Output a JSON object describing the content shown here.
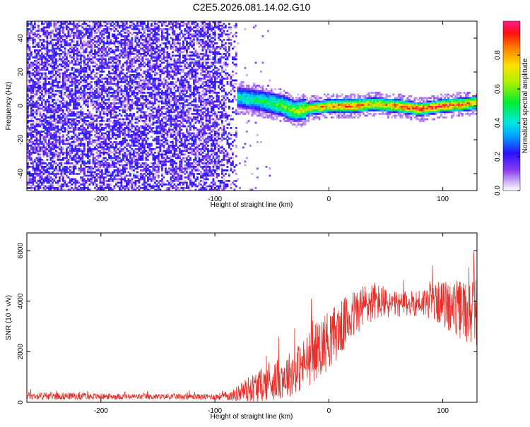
{
  "title": "C2E5.2026.081.14.02.G10",
  "colors": {
    "signal": "#e8302a",
    "heat_low": "#c9a6f5",
    "heat_mid": "#6a10f0",
    "axis": "#000000",
    "background": "#ffffff"
  },
  "chart_data": [
    {
      "type": "heatmap",
      "title": "",
      "xlabel": "Height of straight line (km)",
      "ylabel": "Frequency (Hz)",
      "xlim": [
        -265,
        130
      ],
      "ylim": [
        -50,
        50
      ],
      "xticks": [
        -200,
        -100,
        0,
        100
      ],
      "yticks": [
        -40,
        -20,
        0,
        20,
        40
      ],
      "colorbar": {
        "label": "Normalized spectral amplitude",
        "range": [
          0.0,
          1.0
        ],
        "ticks": [
          "0.0",
          "0.2",
          "0.4",
          "0.6",
          "0.8"
        ],
        "tick_values": [
          0.0,
          0.2,
          0.4,
          0.6,
          0.8
        ]
      },
      "features": {
        "noise_region_x": [
          -265,
          -80
        ],
        "noise_amplitude": 0.15,
        "signal_band_x": [
          -80,
          130
        ],
        "signal_center_freq": [
          [
            -80,
            5
          ],
          [
            -60,
            3
          ],
          [
            -40,
            0
          ],
          [
            -30,
            -3
          ],
          [
            -20,
            -2
          ],
          [
            0,
            0
          ],
          [
            20,
            0
          ],
          [
            40,
            1
          ],
          [
            60,
            0
          ],
          [
            80,
            -2
          ],
          [
            100,
            0
          ],
          [
            120,
            1
          ],
          [
            130,
            2
          ]
        ],
        "signal_peak_amplitude": [
          [
            -80,
            0.45
          ],
          [
            -60,
            0.5
          ],
          [
            -40,
            0.6
          ],
          [
            -20,
            0.75
          ],
          [
            0,
            0.85
          ],
          [
            20,
            0.95
          ],
          [
            40,
            0.75
          ],
          [
            60,
            0.9
          ],
          [
            80,
            0.95
          ],
          [
            100,
            0.95
          ],
          [
            130,
            0.85
          ]
        ]
      }
    },
    {
      "type": "line",
      "title": "",
      "xlabel": "Height of straight line (km)",
      "ylabel": "SNR (10 * v/v)",
      "xlim": [
        -265,
        130
      ],
      "ylim": [
        0,
        6700
      ],
      "xticks": [
        -200,
        -100,
        0,
        100
      ],
      "yticks": [
        0,
        2000,
        4000,
        6000
      ],
      "series": [
        {
          "color": "#e8302a",
          "x": [
            -265,
            -240,
            -200,
            -150,
            -100,
            -85,
            -75,
            -65,
            -55,
            -45,
            -35,
            -25,
            -15,
            -10,
            -5,
            0,
            10,
            20,
            30,
            40,
            50,
            60,
            70,
            80,
            90,
            100,
            110,
            120,
            130
          ],
          "y": [
            250,
            250,
            230,
            220,
            220,
            260,
            450,
            600,
            750,
            900,
            1100,
            1400,
            1800,
            2100,
            2300,
            2500,
            2900,
            3400,
            3800,
            4000,
            3900,
            3850,
            3900,
            3950,
            4000,
            3900,
            3700,
            3600,
            3600
          ],
          "noise_amplitude": [
            150,
            150,
            120,
            110,
            120,
            200,
            450,
            600,
            700,
            800,
            900,
            1000,
            1100,
            1150,
            1200,
            1200,
            1100,
            1000,
            900,
            800,
            600,
            500,
            500,
            550,
            700,
            900,
            1100,
            1300,
            1400
          ]
        }
      ],
      "annotations": []
    }
  ]
}
